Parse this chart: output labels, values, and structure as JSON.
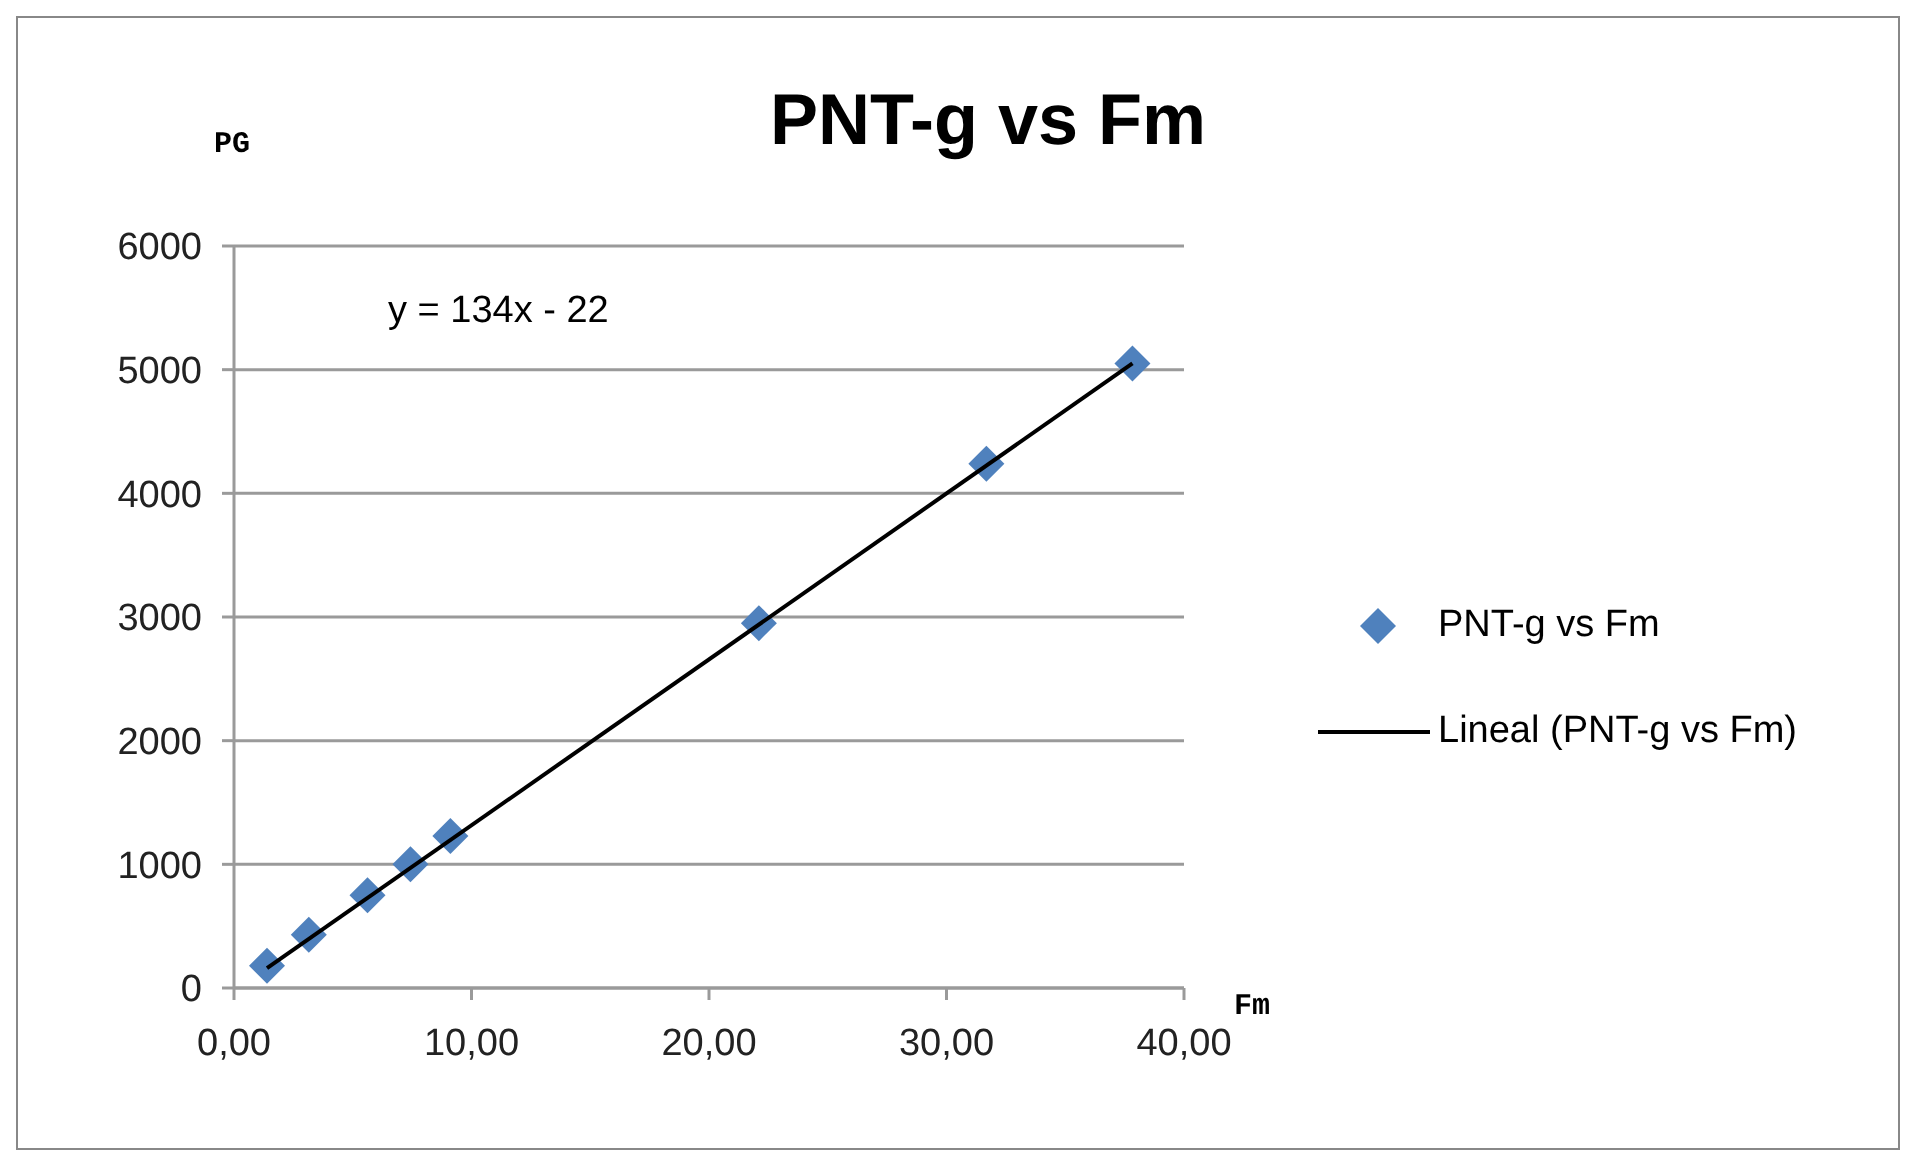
{
  "chart_data": {
    "type": "scatter",
    "title": "PNT-g vs Fm",
    "xlabel": "Fm",
    "ylabel": "PG",
    "annotations": [
      "y = 134x - 22"
    ],
    "series": [
      {
        "name": "PNT-g vs Fm",
        "type": "scatter",
        "color": "#4f81bd",
        "marker": "diamond",
        "x": [
          1.39,
          3.15,
          5.62,
          7.43,
          9.11,
          22.1,
          31.68,
          37.83
        ],
        "values": [
          180,
          430,
          750,
          1000,
          1230,
          2950,
          4240,
          5050
        ]
      },
      {
        "name": "Lineal (PNT-g vs Fm)",
        "type": "line",
        "color": "#000000",
        "marker": "none",
        "line_style": "solid",
        "x": [
          1.39,
          37.83
        ],
        "values": [
          160,
          5050
        ]
      }
    ],
    "xlim": [
      0,
      40
    ],
    "xticks": [
      {
        "value": 0,
        "label": "0,00"
      },
      {
        "value": 10,
        "label": "10,00"
      },
      {
        "value": 20,
        "label": "20,00"
      },
      {
        "value": 30,
        "label": "30,00"
      },
      {
        "value": 40,
        "label": "40,00"
      }
    ],
    "ylim": [
      0,
      6000
    ],
    "yticks": [
      0,
      1000,
      2000,
      3000,
      4000,
      5000,
      6000
    ],
    "grid": "y",
    "legend": "right"
  }
}
